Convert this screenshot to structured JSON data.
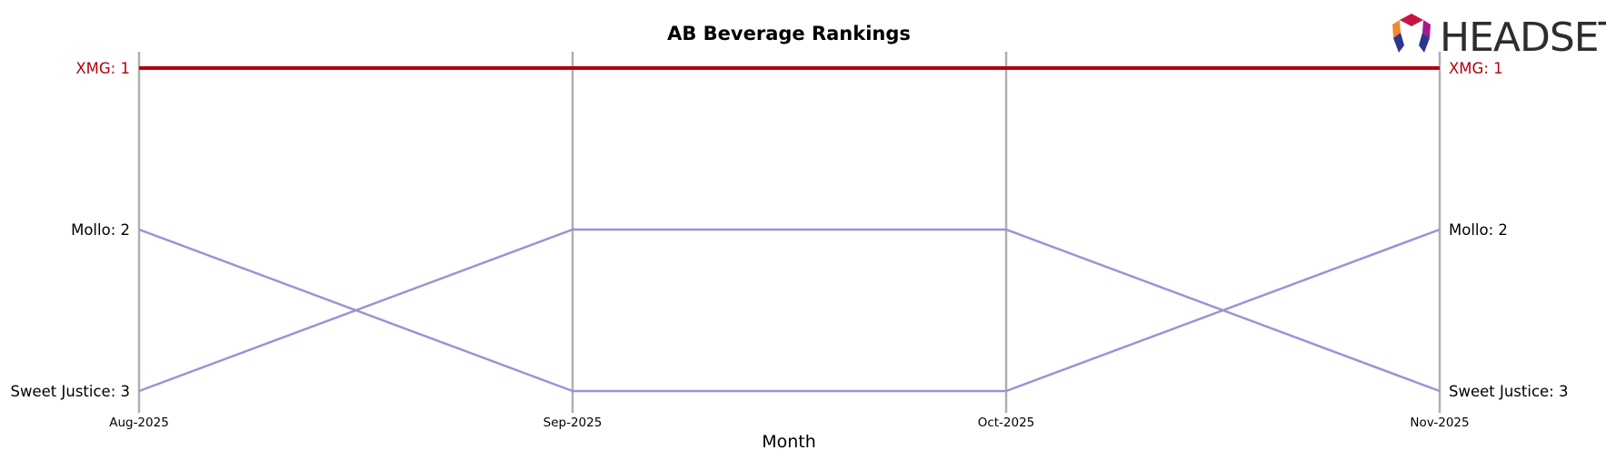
{
  "chart_data": {
    "type": "line",
    "title": "AB Beverage Rankings",
    "xlabel": "Month",
    "ylabel": "",
    "x": [
      "Aug-2025",
      "Sep-2025",
      "Oct-2025",
      "Nov-2025"
    ],
    "ylim": [
      3,
      1
    ],
    "y_inverted": true,
    "grid": "vertical lines at each month",
    "legend": "none; series labelled at left and right ends",
    "series": [
      {
        "name": "XMG",
        "values": [
          1,
          1,
          1,
          1
        ],
        "color": "#b5000b",
        "highlight": true
      },
      {
        "name": "Mollo",
        "values": [
          2,
          3,
          3,
          2
        ],
        "color": "#9c92d4",
        "highlight": false
      },
      {
        "name": "Sweet Justice",
        "values": [
          3,
          2,
          2,
          3
        ],
        "color": "#9c92d4",
        "highlight": false
      }
    ],
    "left_labels": [
      "XMG: 1",
      "Mollo: 2",
      "Sweet Justice: 3"
    ],
    "right_labels": [
      "XMG: 1",
      "Mollo: 2",
      "Sweet Justice: 3"
    ]
  },
  "logo": {
    "text": "HEADSET",
    "icon": "headset-logo-icon"
  }
}
